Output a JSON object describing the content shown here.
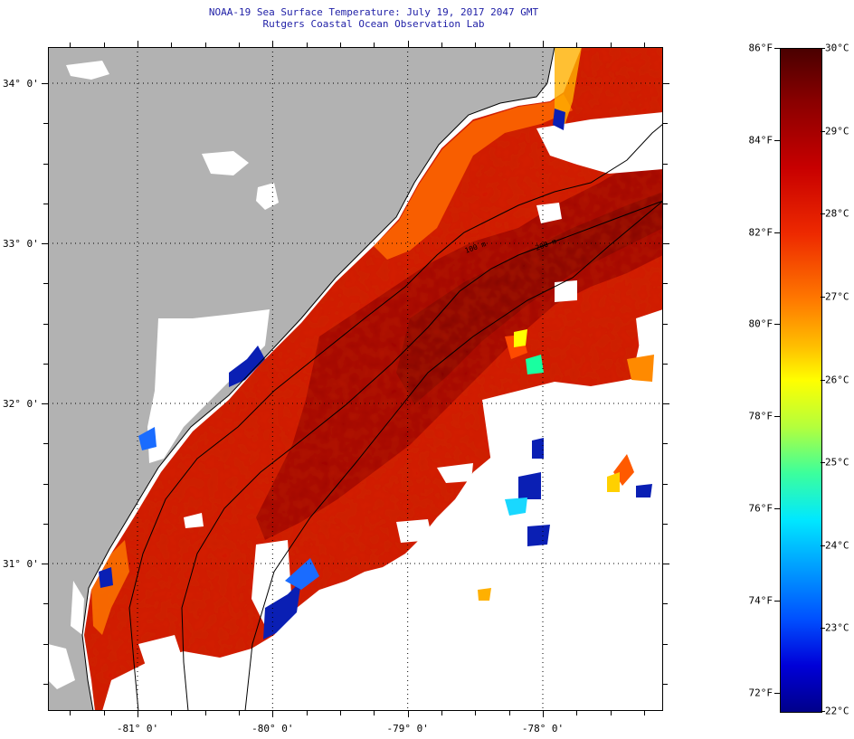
{
  "title_line1": "NOAA-19 Sea Surface Temperature:  July 19, 2017 2047 GMT",
  "title_line2": "Rutgers Coastal Ocean Observation Lab",
  "map": {
    "lat_labels": [
      {
        "text": "34° 0'",
        "value": 34.0
      },
      {
        "text": "33° 0'",
        "value": 33.0
      },
      {
        "text": "32° 0'",
        "value": 32.0
      },
      {
        "text": "31° 0'",
        "value": 31.0
      }
    ],
    "lon_labels": [
      {
        "text": "-81° 0'",
        "value": -81.0
      },
      {
        "text": "-80° 0'",
        "value": -80.0
      },
      {
        "text": "-79° 0'",
        "value": -79.0
      },
      {
        "text": "-78° 0'",
        "value": -78.0
      }
    ],
    "isobath_labels": [
      "100 m",
      "200 m"
    ],
    "colors": {
      "land": "#b2b2b2",
      "cloud_mask": "#ffffff",
      "water_warm": "#d41a00",
      "water_hot": "#8f0000",
      "water_cold": "#0a1fb4"
    }
  },
  "colorbar": {
    "fahrenheit": [
      {
        "text": "86°F",
        "value": 86
      },
      {
        "text": "84°F",
        "value": 84
      },
      {
        "text": "82°F",
        "value": 82
      },
      {
        "text": "80°F",
        "value": 80
      },
      {
        "text": "78°F",
        "value": 78
      },
      {
        "text": "76°F",
        "value": 76
      },
      {
        "text": "74°F",
        "value": 74
      },
      {
        "text": "72°F",
        "value": 72
      }
    ],
    "celsius": [
      {
        "text": "30°C",
        "value": 30
      },
      {
        "text": "29°C",
        "value": 29
      },
      {
        "text": "28°C",
        "value": 28
      },
      {
        "text": "27°C",
        "value": 27
      },
      {
        "text": "26°C",
        "value": 26
      },
      {
        "text": "25°C",
        "value": 25
      },
      {
        "text": "24°C",
        "value": 24
      },
      {
        "text": "23°C",
        "value": 23
      },
      {
        "text": "22°C",
        "value": 22
      }
    ],
    "range_c": [
      22,
      30
    ]
  }
}
